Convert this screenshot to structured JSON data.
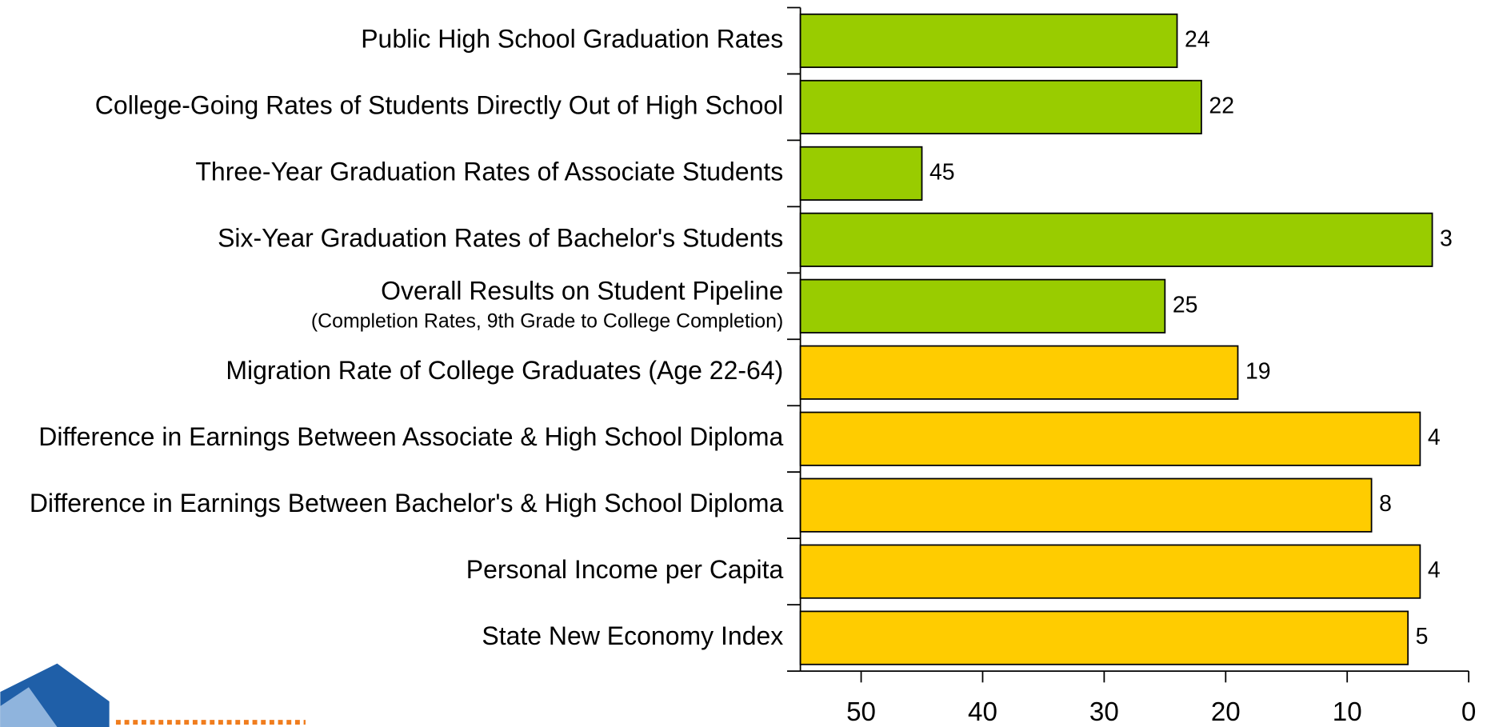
{
  "chart_data": {
    "type": "hbar",
    "categories": [
      "Public High School Graduation Rates",
      "College-Going Rates of Students Directly Out of High School",
      "Three-Year Graduation Rates of Associate Students",
      "Six-Year Graduation Rates of Bachelor's Students",
      "Overall Results on Student Pipeline",
      "Migration Rate of College Graduates (Age 22-64)",
      "Difference in Earnings Between Associate & High School Diploma",
      "Difference in Earnings Between Bachelor's & High School Diploma",
      "Personal Income per Capita",
      "State New Economy Index"
    ],
    "category_sublabels": [
      null,
      null,
      null,
      null,
      "(Completion Rates, 9th Grade to College Completion)",
      null,
      null,
      null,
      null,
      null
    ],
    "values": [
      24,
      22,
      45,
      3,
      25,
      19,
      4,
      8,
      4,
      5
    ],
    "colors": [
      "#99cc00",
      "#99cc00",
      "#99cc00",
      "#99cc00",
      "#99cc00",
      "#ffcc00",
      "#ffcc00",
      "#ffcc00",
      "#ffcc00",
      "#ffcc00"
    ],
    "xlim": [
      55,
      0
    ],
    "xticks": [
      50,
      40,
      30,
      20,
      10,
      0
    ]
  }
}
